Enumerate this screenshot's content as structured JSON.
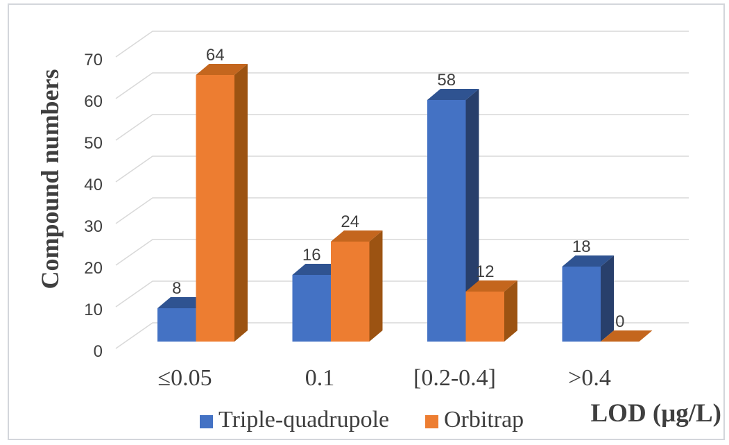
{
  "chart_data": {
    "type": "bar",
    "style": "3d-clustered-column",
    "title": "",
    "categories": [
      "≤0.05",
      "0.1",
      "[0.2-0.4]",
      ">0.4"
    ],
    "series": [
      {
        "name": "Triple-quadrupole",
        "values": [
          8,
          16,
          58,
          18
        ],
        "color_front": "#4472C4",
        "color_top": "#2F5391",
        "color_side": "#283F6B"
      },
      {
        "name": "Orbitrap",
        "values": [
          64,
          24,
          12,
          0
        ],
        "color_front": "#ED7D31",
        "color_top": "#C4661E",
        "color_side": "#9C5312"
      }
    ],
    "xlabel": "LOD (μg/L)",
    "ylabel": "Compound numbers",
    "ylim": [
      0,
      70
    ],
    "yticks": [
      0,
      10,
      20,
      30,
      40,
      50,
      60,
      70
    ],
    "grid": true,
    "gridline_color": "#D9D9D9",
    "text_color": "#404040",
    "border_color": "#D3D6DB",
    "legend_position": "bottom",
    "data_labels": true
  }
}
